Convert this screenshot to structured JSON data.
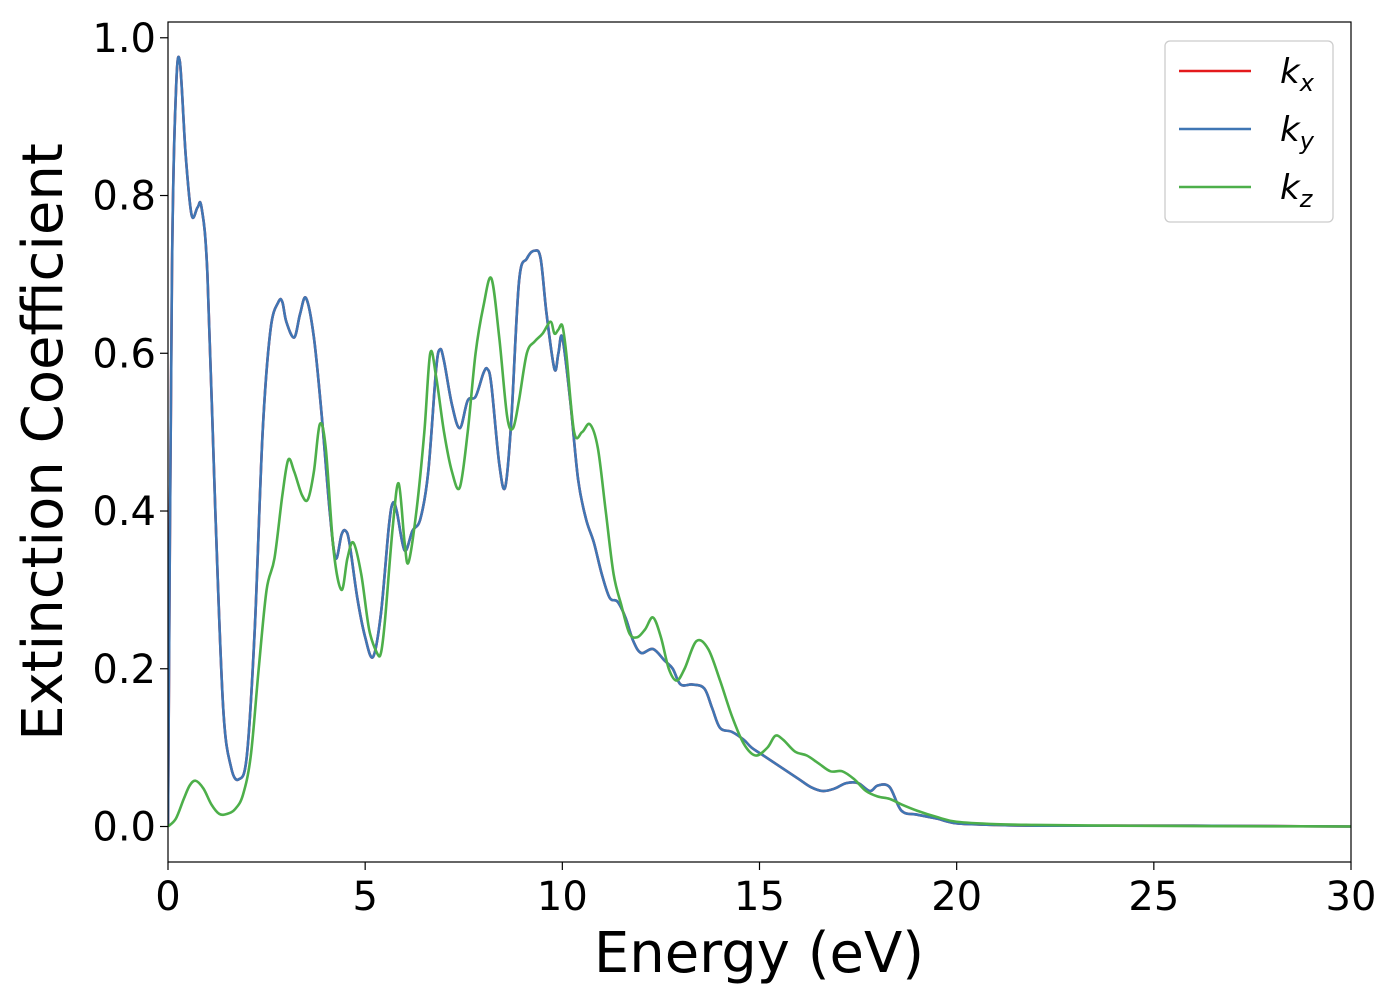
{
  "chart_data": {
    "type": "line",
    "title": "",
    "xlabel": "Energy (eV)",
    "ylabel": "Extinction Coefficient",
    "xlim": [
      0,
      30
    ],
    "ylim": [
      -0.045,
      1.02
    ],
    "xticks": [
      0,
      5,
      10,
      15,
      20,
      25,
      30
    ],
    "xtick_labels": [
      "0",
      "5",
      "10",
      "15",
      "20",
      "25",
      "30"
    ],
    "yticks": [
      0.0,
      0.2,
      0.4,
      0.6,
      0.8,
      1.0
    ],
    "ytick_labels": [
      "0.0",
      "0.2",
      "0.4",
      "0.6",
      "0.8",
      "1.0"
    ],
    "grid": false,
    "legend_position": "top-right",
    "series": [
      {
        "name": "k",
        "subscript": "x",
        "color": "#e41a1c",
        "x": [
          0,
          0.1,
          0.2,
          0.3,
          0.45,
          0.6,
          0.75,
          0.85,
          1.0,
          1.2,
          1.4,
          1.6,
          1.8,
          2.0,
          2.2,
          2.4,
          2.6,
          2.8,
          2.9,
          3.0,
          3.2,
          3.35,
          3.5,
          3.7,
          3.9,
          4.1,
          4.25,
          4.4,
          4.5,
          4.6,
          4.8,
          5.0,
          5.2,
          5.4,
          5.6,
          5.7,
          5.8,
          6.0,
          6.2,
          6.4,
          6.6,
          6.8,
          6.9,
          7.0,
          7.2,
          7.4,
          7.6,
          7.8,
          8.0,
          8.1,
          8.2,
          8.4,
          8.55,
          8.7,
          8.9,
          9.1,
          9.3,
          9.45,
          9.6,
          9.8,
          9.9,
          10.0,
          10.2,
          10.4,
          10.6,
          10.8,
          11.0,
          11.2,
          11.4,
          11.6,
          11.8,
          12.0,
          12.3,
          12.6,
          12.8,
          13.0,
          13.3,
          13.6,
          13.8,
          14.0,
          14.3,
          14.6,
          14.8,
          15.1,
          15.4,
          15.7,
          16.0,
          16.3,
          16.6,
          16.9,
          17.2,
          17.5,
          17.8,
          18.0,
          18.3,
          18.6,
          19.0,
          19.5,
          20.0,
          21,
          22,
          24,
          26,
          28,
          30
        ],
        "y": [
          0.0,
          0.7,
          0.93,
          0.97,
          0.85,
          0.775,
          0.785,
          0.785,
          0.7,
          0.4,
          0.15,
          0.075,
          0.06,
          0.09,
          0.25,
          0.5,
          0.63,
          0.665,
          0.665,
          0.64,
          0.62,
          0.65,
          0.67,
          0.62,
          0.52,
          0.4,
          0.34,
          0.37,
          0.375,
          0.36,
          0.29,
          0.24,
          0.215,
          0.27,
          0.38,
          0.41,
          0.4,
          0.35,
          0.375,
          0.39,
          0.45,
          0.58,
          0.605,
          0.59,
          0.535,
          0.505,
          0.54,
          0.545,
          0.575,
          0.58,
          0.56,
          0.46,
          0.43,
          0.51,
          0.69,
          0.72,
          0.73,
          0.72,
          0.65,
          0.58,
          0.6,
          0.62,
          0.54,
          0.44,
          0.39,
          0.36,
          0.32,
          0.29,
          0.285,
          0.265,
          0.235,
          0.22,
          0.225,
          0.21,
          0.2,
          0.18,
          0.18,
          0.175,
          0.15,
          0.125,
          0.12,
          0.11,
          0.1,
          0.09,
          0.08,
          0.07,
          0.06,
          0.05,
          0.045,
          0.048,
          0.055,
          0.055,
          0.045,
          0.052,
          0.05,
          0.02,
          0.015,
          0.01,
          0.004,
          0.002,
          0.001,
          0.001,
          0.001,
          0.0005,
          0.0
        ]
      },
      {
        "name": "k",
        "subscript": "y",
        "color": "#3f76b4",
        "x": [
          0,
          0.1,
          0.2,
          0.3,
          0.45,
          0.6,
          0.75,
          0.85,
          1.0,
          1.2,
          1.4,
          1.6,
          1.8,
          2.0,
          2.2,
          2.4,
          2.6,
          2.8,
          2.9,
          3.0,
          3.2,
          3.35,
          3.5,
          3.7,
          3.9,
          4.1,
          4.25,
          4.4,
          4.5,
          4.6,
          4.8,
          5.0,
          5.2,
          5.4,
          5.6,
          5.7,
          5.8,
          6.0,
          6.2,
          6.4,
          6.6,
          6.8,
          6.9,
          7.0,
          7.2,
          7.4,
          7.6,
          7.8,
          8.0,
          8.1,
          8.2,
          8.4,
          8.55,
          8.7,
          8.9,
          9.1,
          9.3,
          9.45,
          9.6,
          9.8,
          9.9,
          10.0,
          10.2,
          10.4,
          10.6,
          10.8,
          11.0,
          11.2,
          11.4,
          11.6,
          11.8,
          12.0,
          12.3,
          12.6,
          12.8,
          13.0,
          13.3,
          13.6,
          13.8,
          14.0,
          14.3,
          14.6,
          14.8,
          15.1,
          15.4,
          15.7,
          16.0,
          16.3,
          16.6,
          16.9,
          17.2,
          17.5,
          17.8,
          18.0,
          18.3,
          18.6,
          19.0,
          19.5,
          20.0,
          21,
          22,
          24,
          26,
          28,
          30
        ],
        "y": [
          0.0,
          0.7,
          0.93,
          0.97,
          0.85,
          0.775,
          0.785,
          0.785,
          0.7,
          0.4,
          0.15,
          0.075,
          0.06,
          0.09,
          0.25,
          0.5,
          0.63,
          0.665,
          0.665,
          0.64,
          0.62,
          0.65,
          0.67,
          0.62,
          0.52,
          0.4,
          0.34,
          0.37,
          0.375,
          0.36,
          0.29,
          0.24,
          0.215,
          0.27,
          0.38,
          0.41,
          0.4,
          0.35,
          0.375,
          0.39,
          0.45,
          0.58,
          0.605,
          0.59,
          0.535,
          0.505,
          0.54,
          0.545,
          0.575,
          0.58,
          0.56,
          0.46,
          0.43,
          0.51,
          0.69,
          0.72,
          0.73,
          0.72,
          0.65,
          0.58,
          0.6,
          0.62,
          0.54,
          0.44,
          0.39,
          0.36,
          0.32,
          0.29,
          0.285,
          0.265,
          0.235,
          0.22,
          0.225,
          0.21,
          0.2,
          0.18,
          0.18,
          0.175,
          0.15,
          0.125,
          0.12,
          0.11,
          0.1,
          0.09,
          0.08,
          0.07,
          0.06,
          0.05,
          0.045,
          0.048,
          0.055,
          0.055,
          0.045,
          0.052,
          0.05,
          0.02,
          0.015,
          0.01,
          0.004,
          0.002,
          0.001,
          0.001,
          0.001,
          0.0005,
          0.0
        ]
      },
      {
        "name": "k",
        "subscript": "z",
        "color": "#4daf4a",
        "x": [
          0,
          0.2,
          0.4,
          0.55,
          0.7,
          0.9,
          1.1,
          1.3,
          1.5,
          1.7,
          1.9,
          2.1,
          2.3,
          2.5,
          2.7,
          2.9,
          3.05,
          3.2,
          3.4,
          3.55,
          3.7,
          3.85,
          4.0,
          4.2,
          4.4,
          4.55,
          4.7,
          4.9,
          5.1,
          5.3,
          5.4,
          5.5,
          5.7,
          5.85,
          6.0,
          6.1,
          6.3,
          6.5,
          6.65,
          6.8,
          7.0,
          7.2,
          7.4,
          7.6,
          7.8,
          8.0,
          8.2,
          8.4,
          8.6,
          8.75,
          8.9,
          9.1,
          9.3,
          9.5,
          9.7,
          9.8,
          9.9,
          10.0,
          10.1,
          10.3,
          10.5,
          10.7,
          10.9,
          11.1,
          11.3,
          11.5,
          11.7,
          11.9,
          12.1,
          12.3,
          12.5,
          12.7,
          12.9,
          13.1,
          13.4,
          13.7,
          14.0,
          14.3,
          14.6,
          14.9,
          15.2,
          15.4,
          15.6,
          15.9,
          16.2,
          16.5,
          16.8,
          17.1,
          17.4,
          17.7,
          18.0,
          18.3,
          18.6,
          19.0,
          19.5,
          20.0,
          21,
          22,
          24,
          26,
          28,
          30
        ],
        "y": [
          0.0,
          0.01,
          0.035,
          0.052,
          0.058,
          0.048,
          0.028,
          0.016,
          0.016,
          0.022,
          0.04,
          0.09,
          0.2,
          0.3,
          0.34,
          0.42,
          0.465,
          0.45,
          0.42,
          0.415,
          0.45,
          0.51,
          0.48,
          0.35,
          0.3,
          0.34,
          0.36,
          0.32,
          0.25,
          0.22,
          0.22,
          0.26,
          0.38,
          0.435,
          0.36,
          0.335,
          0.4,
          0.5,
          0.6,
          0.57,
          0.5,
          0.45,
          0.43,
          0.5,
          0.6,
          0.66,
          0.695,
          0.62,
          0.52,
          0.505,
          0.54,
          0.6,
          0.615,
          0.625,
          0.64,
          0.625,
          0.63,
          0.635,
          0.6,
          0.5,
          0.5,
          0.51,
          0.48,
          0.4,
          0.32,
          0.28,
          0.245,
          0.24,
          0.25,
          0.265,
          0.24,
          0.2,
          0.185,
          0.2,
          0.235,
          0.225,
          0.185,
          0.14,
          0.105,
          0.09,
          0.1,
          0.115,
          0.11,
          0.095,
          0.09,
          0.08,
          0.07,
          0.07,
          0.06,
          0.045,
          0.038,
          0.035,
          0.028,
          0.02,
          0.012,
          0.006,
          0.003,
          0.002,
          0.001,
          0.0005,
          0.0003,
          0.0
        ]
      }
    ]
  }
}
